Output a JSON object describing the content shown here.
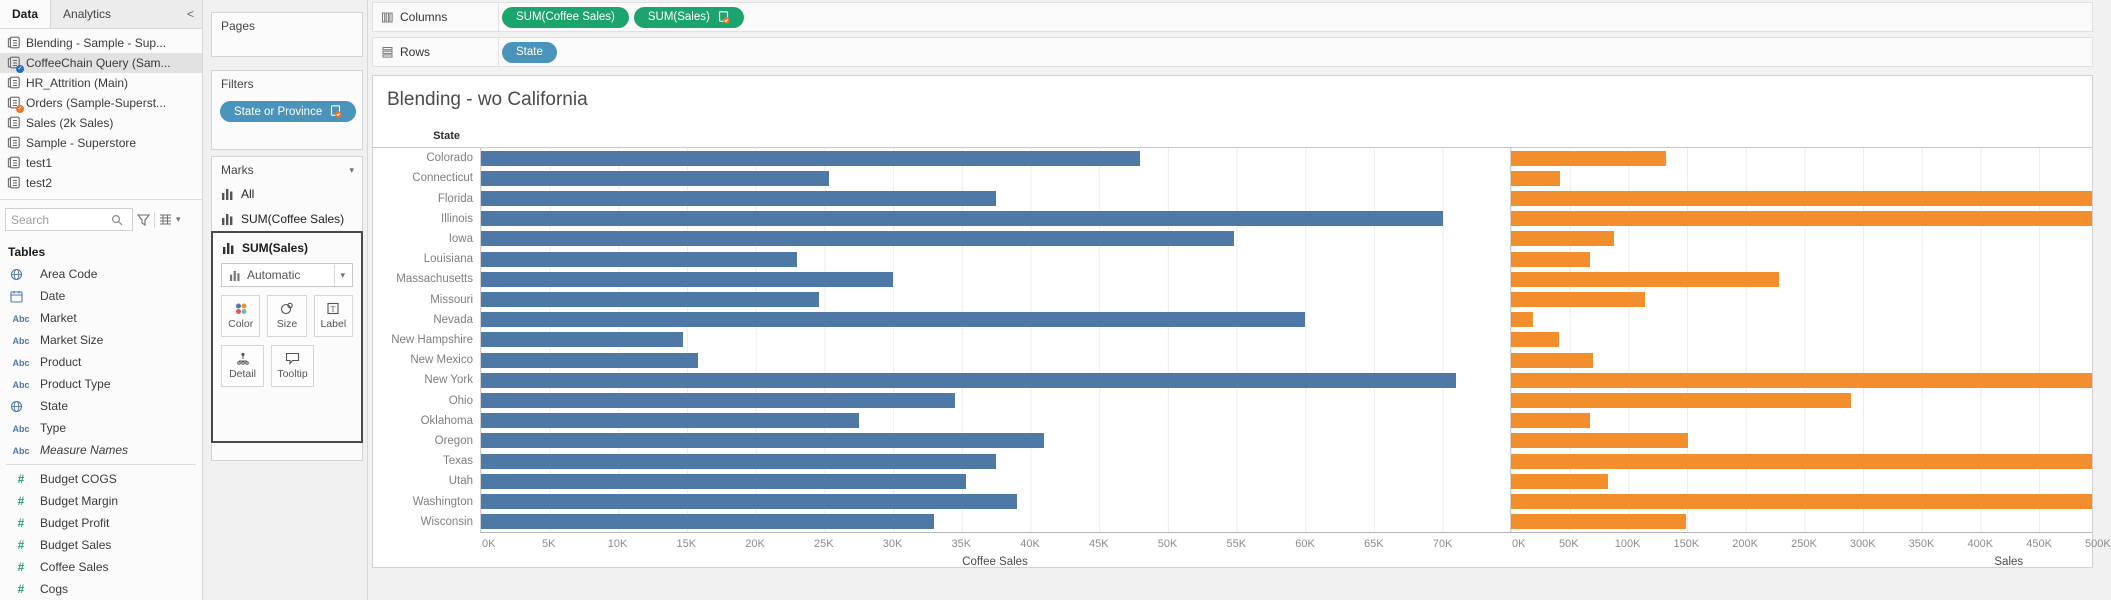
{
  "sidebar": {
    "tabs": {
      "data": "Data",
      "analytics": "Analytics",
      "collapse": "<"
    },
    "data_sources": [
      {
        "name": "Blending - Sample - Sup...",
        "badge": null,
        "selected": false
      },
      {
        "name": "CoffeeChain Query (Sam...",
        "badge": "blue",
        "selected": true
      },
      {
        "name": "HR_Attrition (Main)",
        "badge": null,
        "selected": false
      },
      {
        "name": "Orders (Sample-Superst...",
        "badge": "orange",
        "selected": false
      },
      {
        "name": "Sales (2k Sales)",
        "badge": null,
        "selected": false
      },
      {
        "name": "Sample - Superstore",
        "badge": null,
        "selected": false
      },
      {
        "name": "test1",
        "badge": null,
        "selected": false
      },
      {
        "name": "test2",
        "badge": null,
        "selected": false
      }
    ],
    "search": {
      "placeholder": "Search"
    },
    "tables_header": "Tables",
    "dimension_fields": [
      {
        "icon": "globe",
        "name": "Area Code"
      },
      {
        "icon": "date",
        "name": "Date"
      },
      {
        "icon": "abc",
        "name": "Market"
      },
      {
        "icon": "abc",
        "name": "Market Size"
      },
      {
        "icon": "abc",
        "name": "Product"
      },
      {
        "icon": "abc",
        "name": "Product Type"
      },
      {
        "icon": "globe",
        "name": "State"
      },
      {
        "icon": "abc",
        "name": "Type"
      },
      {
        "icon": "abc",
        "name": "Measure Names",
        "italic": true
      }
    ],
    "measure_fields": [
      {
        "icon": "hash",
        "name": "Budget COGS"
      },
      {
        "icon": "hash",
        "name": "Budget Margin"
      },
      {
        "icon": "hash",
        "name": "Budget Profit"
      },
      {
        "icon": "hash",
        "name": "Budget Sales"
      },
      {
        "icon": "hash",
        "name": "Coffee Sales"
      },
      {
        "icon": "hash",
        "name": "Cogs"
      }
    ]
  },
  "cards": {
    "pages_label": "Pages",
    "filters_label": "Filters",
    "filter_pills": [
      {
        "label": "State or Province",
        "color": "blue",
        "blend": true
      }
    ],
    "marks": {
      "label": "Marks",
      "items": [
        {
          "label": "All"
        },
        {
          "label": "SUM(Coffee Sales)"
        }
      ],
      "active_card": {
        "label": "SUM(Sales)",
        "mark_type": "Automatic",
        "buttons": {
          "color": "Color",
          "size": "Size",
          "label": "Label",
          "detail": "Detail",
          "tooltip": "Tooltip"
        }
      }
    }
  },
  "shelves": {
    "columns_label": "Columns",
    "rows_label": "Rows",
    "columns_pills": [
      {
        "label": "SUM(Coffee Sales)",
        "color": "green",
        "blend": false
      },
      {
        "label": "SUM(Sales)",
        "color": "green",
        "blend": true
      }
    ],
    "rows_pills": [
      {
        "label": "State",
        "color": "blue",
        "blend": false
      }
    ]
  },
  "colors": {
    "bar_blue": "#4e79a7",
    "bar_orange": "#f28e2b",
    "pill_green": "#1ca46f",
    "pill_blue": "#4a93bb",
    "badge_blue": "#1f72b8",
    "badge_orange": "#e8762c"
  },
  "chart_data": {
    "type": "bar",
    "orientation": "horizontal",
    "title": "Blending - wo California",
    "row_header": "State",
    "grid": true,
    "categories": [
      "Colorado",
      "Connecticut",
      "Florida",
      "Illinois",
      "Iowa",
      "Louisiana",
      "Massachusetts",
      "Missouri",
      "Nevada",
      "New Hampshire",
      "New Mexico",
      "New York",
      "Ohio",
      "Oklahoma",
      "Oregon",
      "Texas",
      "Utah",
      "Washington",
      "Wisconsin"
    ],
    "series": [
      {
        "name": "Coffee Sales",
        "color": "#4e79a7",
        "axis_title": "Coffee Sales",
        "unit": "K",
        "values_k": [
          48,
          25.3,
          37.5,
          70,
          54.8,
          23,
          30,
          24.6,
          60,
          14.7,
          15.8,
          71,
          34.5,
          27.5,
          41,
          37.5,
          35.3,
          39,
          33
        ],
        "axis": {
          "min_k": 0,
          "max_k": 74.9,
          "tick_step_k": 5,
          "ticks_k": [
            0,
            5,
            10,
            15,
            20,
            25,
            30,
            35,
            40,
            45,
            50,
            55,
            60,
            65,
            70
          ],
          "last_tick_clipped": false,
          "title_position_pct": 50
        }
      },
      {
        "name": "Sales",
        "color": "#f28e2b",
        "axis_title": "Sales",
        "unit": "K",
        "values_k": [
          132,
          42,
          495,
          495,
          88,
          67,
          228,
          114,
          19,
          41,
          70,
          495,
          290,
          67,
          151,
          495,
          83,
          495,
          149
        ],
        "clipped_at_right_edge": [
          false,
          false,
          true,
          true,
          false,
          false,
          false,
          false,
          false,
          false,
          false,
          true,
          false,
          false,
          false,
          true,
          false,
          true,
          false
        ],
        "axis": {
          "min_k": 0,
          "max_k": 495,
          "tick_step_k": 50,
          "ticks_k": [
            0,
            50,
            100,
            150,
            200,
            250,
            300,
            350,
            400,
            450,
            500
          ],
          "last_tick_clipped": true,
          "title_position_pct": 85.7
        }
      }
    ]
  }
}
